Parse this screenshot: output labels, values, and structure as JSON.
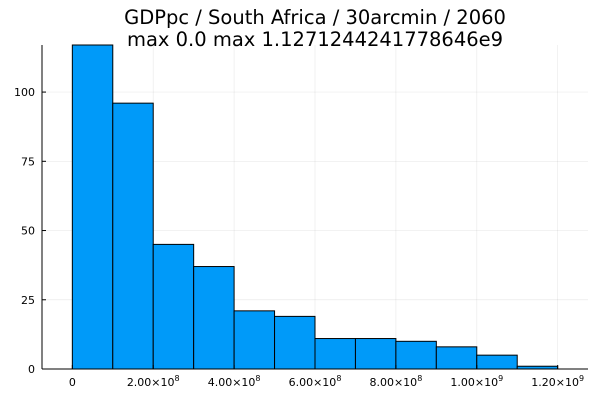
{
  "chart_data": {
    "type": "bar",
    "title_lines": [
      "GDPpc / South Africa / 30arcmin / 2060",
      "max 0.0  max 1.1271244241778646e9"
    ],
    "xlabel": "",
    "ylabel": "",
    "bin_width": 100000000,
    "bins": [
      {
        "start": 0,
        "end": 100000000,
        "count": 117
      },
      {
        "start": 100000000,
        "end": 200000000,
        "count": 96
      },
      {
        "start": 200000000,
        "end": 300000000,
        "count": 45
      },
      {
        "start": 300000000,
        "end": 400000000,
        "count": 37
      },
      {
        "start": 400000000,
        "end": 500000000,
        "count": 21
      },
      {
        "start": 500000000,
        "end": 600000000,
        "count": 19
      },
      {
        "start": 600000000,
        "end": 700000000,
        "count": 11
      },
      {
        "start": 700000000,
        "end": 800000000,
        "count": 11
      },
      {
        "start": 800000000,
        "end": 900000000,
        "count": 10
      },
      {
        "start": 900000000,
        "end": 1000000000,
        "count": 8
      },
      {
        "start": 1000000000,
        "end": 1100000000,
        "count": 5
      },
      {
        "start": 1100000000,
        "end": 1200000000,
        "count": 1
      }
    ],
    "xlim": [
      -75000000,
      1275000000
    ],
    "ylim": [
      0,
      117
    ],
    "x_ticks": [
      {
        "value": 0,
        "mantissa": "0",
        "exp": ""
      },
      {
        "value": 200000000,
        "mantissa": "2.00×10",
        "exp": "8"
      },
      {
        "value": 400000000,
        "mantissa": "4.00×10",
        "exp": "8"
      },
      {
        "value": 600000000,
        "mantissa": "6.00×10",
        "exp": "8"
      },
      {
        "value": 800000000,
        "mantissa": "8.00×10",
        "exp": "8"
      },
      {
        "value": 1000000000,
        "mantissa": "1.00×10",
        "exp": "9"
      },
      {
        "value": 1200000000,
        "mantissa": "1.20×10",
        "exp": "9"
      }
    ],
    "y_ticks": [
      {
        "value": 0,
        "label": "0"
      },
      {
        "value": 25,
        "label": "25"
      },
      {
        "value": 50,
        "label": "50"
      },
      {
        "value": 75,
        "label": "75"
      },
      {
        "value": 100,
        "label": "100"
      }
    ],
    "bar_color": "#009af9",
    "grid": true,
    "legend": "none"
  }
}
